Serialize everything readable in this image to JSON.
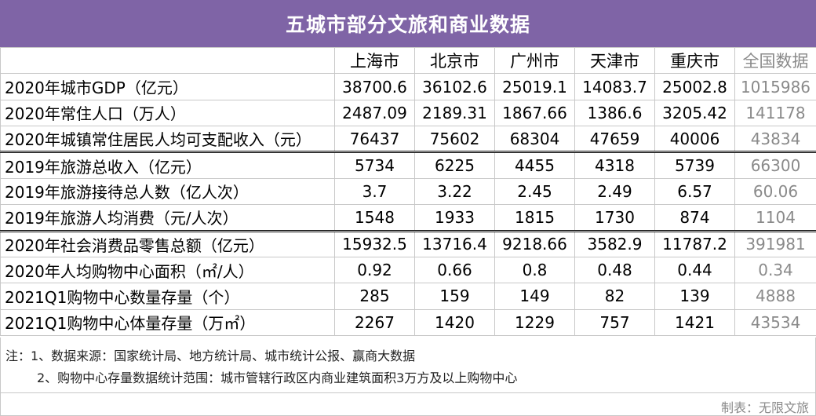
{
  "title": "五城市部分文旅和商业数据",
  "table": {
    "header": [
      "",
      "上海市",
      "北京市",
      "广州市",
      "天津市",
      "重庆市",
      "全国数据"
    ],
    "rows": [
      {
        "label": "2020年城市GDP（亿元）",
        "values": [
          "38700.6",
          "36102.6",
          "25019.1",
          "14083.7",
          "25002.8"
        ],
        "national": "1015986"
      },
      {
        "label": "2020年常住人口（万人）",
        "values": [
          "2487.09",
          "2189.31",
          "1867.66",
          "1386.6",
          "3205.42"
        ],
        "national": "141178"
      },
      {
        "label": "2020年城镇常住居民人均可支配收入（元）",
        "values": [
          "76437",
          "75602",
          "68304",
          "47659",
          "40006"
        ],
        "national": "43834"
      },
      {
        "label": "2019年旅游总收入（亿元）",
        "values": [
          "5734",
          "6225",
          "4455",
          "4318",
          "5739"
        ],
        "national": "66300"
      },
      {
        "label": "2019年旅游接待总人数（亿人次）",
        "values": [
          "3.7",
          "3.22",
          "2.45",
          "2.49",
          "6.57"
        ],
        "national": "60.06"
      },
      {
        "label": "2019年旅游人均消费（元/人次）",
        "values": [
          "1548",
          "1933",
          "1815",
          "1730",
          "874"
        ],
        "national": "1104"
      },
      {
        "label": "2020年社会消费品零售总额（亿元）",
        "values": [
          "15932.5",
          "13716.4",
          "9218.66",
          "3582.9",
          "11787.2"
        ],
        "national": "391981"
      },
      {
        "label": "2020年人均购物中心面积（㎡/人）",
        "values": [
          "0.92",
          "0.66",
          "0.8",
          "0.48",
          "0.44"
        ],
        "national": "0.34"
      },
      {
        "label": "2021Q1购物中心数量存量（个）",
        "values": [
          "285",
          "159",
          "149",
          "82",
          "139"
        ],
        "national": "4888"
      },
      {
        "label": "2021Q1购物中心体量存量（万㎡）",
        "values": [
          "2267",
          "1420",
          "1229",
          "757",
          "1421"
        ],
        "national": "43534"
      }
    ]
  },
  "notes": {
    "line1": "注：1、数据来源：国家统计局、地方统计局、城市统计公报、赢商大数据",
    "line2": "2、购物中心存量数据统计范围：城市管辖行政区内商业建筑面积3万方及以上购物中心"
  },
  "credit": "制表：无限文旅",
  "colors": {
    "title_bg": "#7f64a6",
    "national_text": "#8a8a8a"
  }
}
